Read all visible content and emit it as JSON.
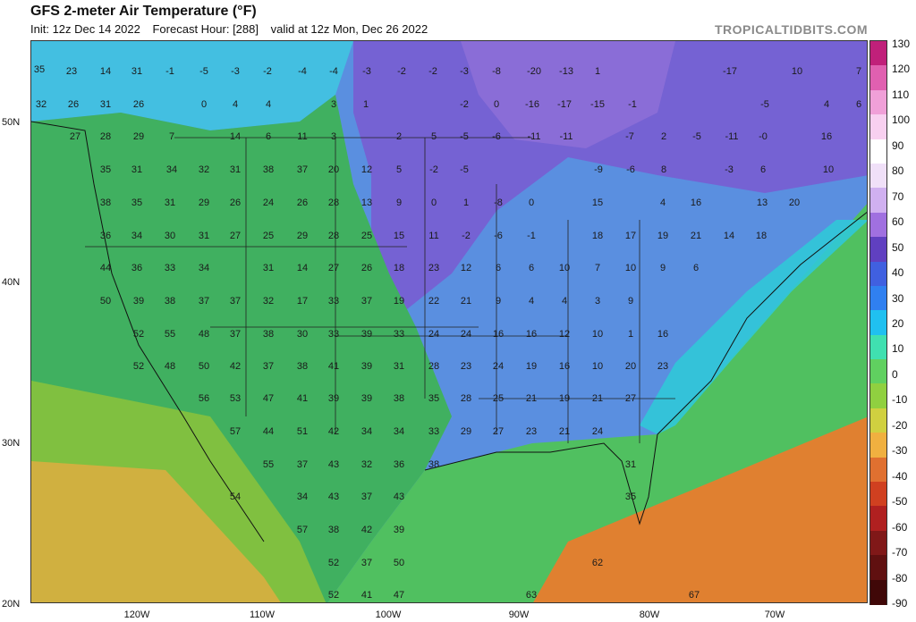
{
  "header": {
    "title": "GFS 2-meter Air Temperature (°F)",
    "init": "Init: 12z Dec 14 2022",
    "forecast_hour": "Forecast Hour: [288]",
    "valid": "valid at 12z Mon, Dec 26 2022",
    "brand": "TROPICALTIDBITS.COM"
  },
  "axes": {
    "lat_labels": [
      "50N",
      "40N",
      "30N",
      "20N"
    ],
    "lon_labels": [
      "120W",
      "110W",
      "100W",
      "90W",
      "80W",
      "70W"
    ]
  },
  "colorbar": {
    "labels": [
      "130",
      "120",
      "110",
      "100",
      "90",
      "80",
      "70",
      "60",
      "50",
      "40",
      "30",
      "20",
      "10",
      "0",
      "-10",
      "-20",
      "-30",
      "-40",
      "-50",
      "-60",
      "-70",
      "-80",
      "-90"
    ],
    "colors": [
      "#c0207a",
      "#e060b0",
      "#f0a0d8",
      "#f8d0f0",
      "#ffffff",
      "#f0e0f8",
      "#d0b0f0",
      "#a070e0",
      "#6040c0",
      "#4060e0",
      "#3080f0",
      "#20c0f0",
      "#40e0b0",
      "#60d060",
      "#90d040",
      "#d0d040",
      "#f0b040",
      "#e07030",
      "#d04020",
      "#b02020",
      "#801818",
      "#601010",
      "#400808"
    ]
  },
  "map": {
    "labels": [
      {
        "t": "35"
      },
      {
        "t": "23"
      },
      {
        "t": "14"
      },
      {
        "t": "31"
      },
      {
        "t": "-1"
      },
      {
        "t": "-5"
      },
      {
        "t": "-3"
      },
      {
        "t": "-2"
      },
      {
        "t": "-4"
      },
      {
        "t": "-4"
      },
      {
        "t": "-3"
      },
      {
        "t": "-2"
      },
      {
        "t": "-2"
      },
      {
        "t": "-3"
      },
      {
        "t": "-8"
      },
      {
        "t": "-20"
      },
      {
        "t": "-13"
      },
      {
        "t": "1"
      },
      {
        "t": "-17"
      },
      {
        "t": "10"
      },
      {
        "t": "7"
      },
      {
        "t": "32"
      },
      {
        "t": "26"
      },
      {
        "t": "31"
      },
      {
        "t": "26"
      },
      {
        "t": "0"
      },
      {
        "t": "4"
      },
      {
        "t": "4"
      },
      {
        "t": "3"
      },
      {
        "t": "1"
      },
      {
        "t": "-2"
      },
      {
        "t": "0"
      },
      {
        "t": "-16"
      },
      {
        "t": "-17"
      },
      {
        "t": "-15"
      },
      {
        "t": "-1"
      },
      {
        "t": "-5"
      },
      {
        "t": "4"
      },
      {
        "t": "6"
      },
      {
        "t": "27"
      },
      {
        "t": "28"
      },
      {
        "t": "29"
      },
      {
        "t": "7"
      },
      {
        "t": "14"
      },
      {
        "t": "6"
      },
      {
        "t": "11"
      },
      {
        "t": "3"
      },
      {
        "t": "2"
      },
      {
        "t": "5"
      },
      {
        "t": "-5"
      },
      {
        "t": "-6"
      },
      {
        "t": "-11"
      },
      {
        "t": "-11"
      },
      {
        "t": "-7"
      },
      {
        "t": "2"
      },
      {
        "t": "-5"
      },
      {
        "t": "-11"
      },
      {
        "t": "-0"
      },
      {
        "t": "16"
      },
      {
        "t": "35"
      },
      {
        "t": "31"
      },
      {
        "t": "34"
      },
      {
        "t": "32"
      },
      {
        "t": "31"
      },
      {
        "t": "38"
      },
      {
        "t": "37"
      },
      {
        "t": "20"
      },
      {
        "t": "12"
      },
      {
        "t": "5"
      },
      {
        "t": "-2"
      },
      {
        "t": "-5"
      },
      {
        "t": "-9"
      },
      {
        "t": "-6"
      },
      {
        "t": "8"
      },
      {
        "t": "-3"
      },
      {
        "t": "6"
      },
      {
        "t": "10"
      },
      {
        "t": "38"
      },
      {
        "t": "35"
      },
      {
        "t": "31"
      },
      {
        "t": "29"
      },
      {
        "t": "26"
      },
      {
        "t": "24"
      },
      {
        "t": "26"
      },
      {
        "t": "28"
      },
      {
        "t": "13"
      },
      {
        "t": "9"
      },
      {
        "t": "0"
      },
      {
        "t": "1"
      },
      {
        "t": "-8"
      },
      {
        "t": "0"
      },
      {
        "t": "15"
      },
      {
        "t": "4"
      },
      {
        "t": "16"
      },
      {
        "t": "13"
      },
      {
        "t": "20"
      },
      {
        "t": "36"
      },
      {
        "t": "34"
      },
      {
        "t": "30"
      },
      {
        "t": "31"
      },
      {
        "t": "27"
      },
      {
        "t": "25"
      },
      {
        "t": "29"
      },
      {
        "t": "28"
      },
      {
        "t": "25"
      },
      {
        "t": "15"
      },
      {
        "t": "11"
      },
      {
        "t": "-2"
      },
      {
        "t": "-6"
      },
      {
        "t": "-1"
      },
      {
        "t": "18"
      },
      {
        "t": "17"
      },
      {
        "t": "19"
      },
      {
        "t": "21"
      },
      {
        "t": "14"
      },
      {
        "t": "18"
      },
      {
        "t": "44"
      },
      {
        "t": "36"
      },
      {
        "t": "33"
      },
      {
        "t": "34"
      },
      {
        "t": "31"
      },
      {
        "t": "14"
      },
      {
        "t": "27"
      },
      {
        "t": "26"
      },
      {
        "t": "18"
      },
      {
        "t": "23"
      },
      {
        "t": "12"
      },
      {
        "t": "6"
      },
      {
        "t": "6"
      },
      {
        "t": "10"
      },
      {
        "t": "7"
      },
      {
        "t": "10"
      },
      {
        "t": "9"
      },
      {
        "t": "6"
      },
      {
        "t": "50"
      },
      {
        "t": "39"
      },
      {
        "t": "38"
      },
      {
        "t": "37"
      },
      {
        "t": "37"
      },
      {
        "t": "32"
      },
      {
        "t": "17"
      },
      {
        "t": "33"
      },
      {
        "t": "37"
      },
      {
        "t": "19"
      },
      {
        "t": "22"
      },
      {
        "t": "21"
      },
      {
        "t": "9"
      },
      {
        "t": "4"
      },
      {
        "t": "4"
      },
      {
        "t": "3"
      },
      {
        "t": "9"
      },
      {
        "t": "52"
      },
      {
        "t": "55"
      },
      {
        "t": "48"
      },
      {
        "t": "37"
      },
      {
        "t": "38"
      },
      {
        "t": "30"
      },
      {
        "t": "33"
      },
      {
        "t": "39"
      },
      {
        "t": "33"
      },
      {
        "t": "24"
      },
      {
        "t": "24"
      },
      {
        "t": "16"
      },
      {
        "t": "16"
      },
      {
        "t": "12"
      },
      {
        "t": "10"
      },
      {
        "t": "1"
      },
      {
        "t": "16"
      },
      {
        "t": "52"
      },
      {
        "t": "48"
      },
      {
        "t": "50"
      },
      {
        "t": "42"
      },
      {
        "t": "37"
      },
      {
        "t": "38"
      },
      {
        "t": "41"
      },
      {
        "t": "39"
      },
      {
        "t": "31"
      },
      {
        "t": "28"
      },
      {
        "t": "23"
      },
      {
        "t": "24"
      },
      {
        "t": "19"
      },
      {
        "t": "16"
      },
      {
        "t": "10"
      },
      {
        "t": "20"
      },
      {
        "t": "23"
      },
      {
        "t": "56"
      },
      {
        "t": "53"
      },
      {
        "t": "47"
      },
      {
        "t": "41"
      },
      {
        "t": "39"
      },
      {
        "t": "39"
      },
      {
        "t": "38"
      },
      {
        "t": "35"
      },
      {
        "t": "28"
      },
      {
        "t": "25"
      },
      {
        "t": "21"
      },
      {
        "t": "19"
      },
      {
        "t": "21"
      },
      {
        "t": "27"
      },
      {
        "t": "57"
      },
      {
        "t": "44"
      },
      {
        "t": "51"
      },
      {
        "t": "42"
      },
      {
        "t": "34"
      },
      {
        "t": "34"
      },
      {
        "t": "33"
      },
      {
        "t": "29"
      },
      {
        "t": "27"
      },
      {
        "t": "23"
      },
      {
        "t": "21"
      },
      {
        "t": "24"
      },
      {
        "t": "55"
      },
      {
        "t": "37"
      },
      {
        "t": "43"
      },
      {
        "t": "32"
      },
      {
        "t": "36"
      },
      {
        "t": "38"
      },
      {
        "t": "31"
      },
      {
        "t": "54"
      },
      {
        "t": "34"
      },
      {
        "t": "43"
      },
      {
        "t": "37"
      },
      {
        "t": "43"
      },
      {
        "t": "35"
      },
      {
        "t": "57"
      },
      {
        "t": "38"
      },
      {
        "t": "42"
      },
      {
        "t": "39"
      },
      {
        "t": "52"
      },
      {
        "t": "37"
      },
      {
        "t": "50"
      },
      {
        "t": "62"
      },
      {
        "t": "52"
      },
      {
        "t": "41"
      },
      {
        "t": "47"
      },
      {
        "t": "63"
      },
      {
        "t": "67"
      }
    ]
  }
}
